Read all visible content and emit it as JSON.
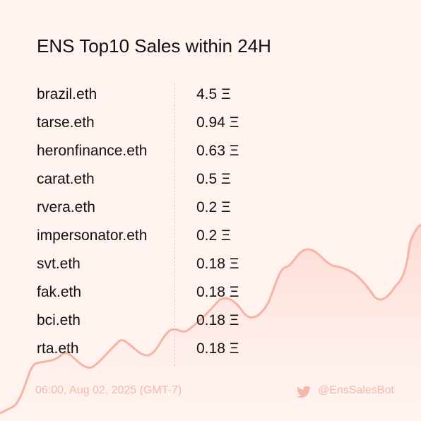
{
  "header": {
    "title": "ENS Top10 Sales within 24H"
  },
  "table": {
    "rows": [
      [
        "brazil.eth",
        "4.5 Ξ"
      ],
      [
        "tarse.eth",
        "0.94 Ξ"
      ],
      [
        "heronfinance.eth",
        "0.63 Ξ"
      ],
      [
        "carat.eth",
        "0.5 Ξ"
      ],
      [
        "rvera.eth",
        "0.2 Ξ"
      ],
      [
        "impersonator.eth",
        "0.2 Ξ"
      ],
      [
        "svt.eth",
        "0.18 Ξ"
      ],
      [
        "fak.eth",
        "0.18 Ξ"
      ],
      [
        "bci.eth",
        "0.18 Ξ"
      ],
      [
        "rta.eth",
        "0.18 Ξ"
      ]
    ]
  },
  "footer": {
    "timestamp": "06:00, Aug 02, 2025 (GMT-7)",
    "handle": "@EnsSalesBot"
  }
}
